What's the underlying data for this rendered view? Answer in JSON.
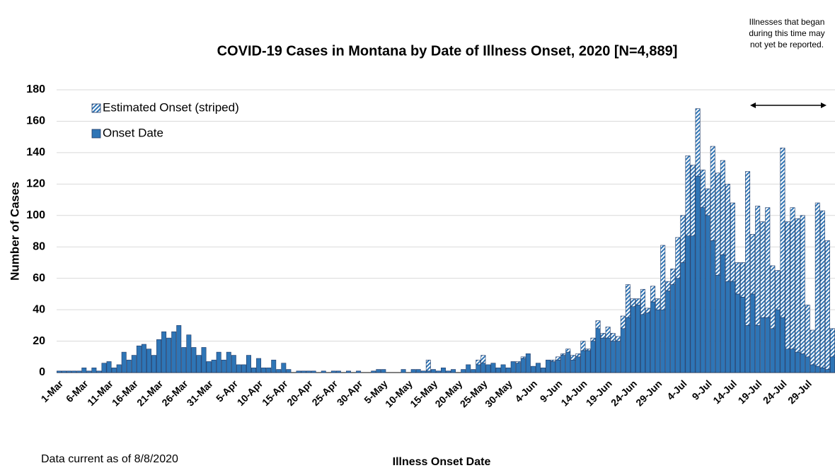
{
  "chart_data": {
    "type": "stacked_bar",
    "title": "COVID-19 Cases in Montana by Date of Illness Onset, 2020 [N=4,889]",
    "annotation": [
      "Illnesses that began",
      "during this time may",
      "not yet be reported."
    ],
    "footnote": "Data current as of 8/8/2020",
    "x_label": "Illness Onset Date",
    "y_label": "Number of Cases",
    "ylim": [
      0,
      180
    ],
    "yticks": [
      0,
      20,
      40,
      60,
      80,
      100,
      120,
      140,
      160,
      180
    ],
    "grid": true,
    "legend": "top-left",
    "categories": [
      "1-Mar",
      null,
      null,
      null,
      null,
      "6-Mar",
      null,
      null,
      null,
      null,
      "11-Mar",
      null,
      null,
      null,
      null,
      "16-Mar",
      null,
      null,
      null,
      null,
      "21-Mar",
      null,
      null,
      null,
      null,
      "26-Mar",
      null,
      null,
      null,
      null,
      "31-Mar",
      null,
      null,
      null,
      null,
      "5-Apr",
      null,
      null,
      null,
      null,
      "10-Apr",
      null,
      null,
      null,
      null,
      "15-Apr",
      null,
      null,
      null,
      null,
      "20-Apr",
      null,
      null,
      null,
      null,
      "25-Apr",
      null,
      null,
      null,
      null,
      "30-Apr",
      null,
      null,
      null,
      null,
      "5-May",
      null,
      null,
      null,
      null,
      "10-May",
      null,
      null,
      null,
      null,
      "15-May",
      null,
      null,
      null,
      null,
      "20-May",
      null,
      null,
      null,
      null,
      "25-May",
      null,
      null,
      null,
      null,
      "30-May",
      null,
      null,
      null,
      null,
      "4-Jun",
      null,
      null,
      null,
      null,
      "9-Jun",
      null,
      null,
      null,
      null,
      "14-Jun",
      null,
      null,
      null,
      null,
      "19-Jun",
      null,
      null,
      null,
      null,
      "24-Jun",
      null,
      null,
      null,
      null,
      "29-Jun",
      null,
      null,
      null,
      null,
      "4-Jul",
      null,
      null,
      null,
      null,
      "9-Jul",
      null,
      null,
      null,
      null,
      "14-Jul",
      null,
      null,
      null,
      null,
      "19-Jul",
      null,
      null,
      null,
      null,
      "24-Jul",
      null,
      null,
      null,
      null,
      "29-Jul",
      null,
      null,
      null,
      null,
      null
    ],
    "series": [
      {
        "name": "Onset Date",
        "color": "#2e75b6",
        "striped": false,
        "values": [
          1,
          1,
          1,
          1,
          1,
          3,
          1,
          3,
          1,
          6,
          7,
          3,
          5,
          13,
          8,
          11,
          17,
          18,
          15,
          11,
          21,
          26,
          22,
          26,
          30,
          16,
          24,
          16,
          11,
          16,
          7,
          8,
          13,
          8,
          13,
          11,
          5,
          5,
          11,
          3,
          9,
          3,
          3,
          8,
          2,
          6,
          2,
          0,
          1,
          1,
          1,
          1,
          0,
          1,
          0,
          1,
          1,
          0,
          1,
          0,
          1,
          0,
          0,
          1,
          2,
          2,
          0,
          0,
          0,
          2,
          0,
          2,
          2,
          1,
          1,
          2,
          1,
          3,
          1,
          2,
          0,
          2,
          5,
          2,
          5,
          6,
          5,
          6,
          3,
          5,
          3,
          7,
          6,
          9,
          12,
          4,
          6,
          3,
          8,
          7,
          8,
          11,
          13,
          8,
          10,
          14,
          14,
          20,
          28,
          22,
          22,
          20,
          20,
          28,
          35,
          42,
          43,
          37,
          38,
          45,
          40,
          40,
          52,
          56,
          60,
          70,
          87,
          87,
          125,
          105,
          100,
          84,
          62,
          75,
          58,
          58,
          50,
          48,
          30,
          50,
          30,
          35,
          35,
          28,
          40,
          35,
          15,
          15,
          13,
          12,
          10,
          5,
          4,
          3,
          2,
          10
        ]
      },
      {
        "name": "Estimated Onset (striped)",
        "color": "#2e75b6",
        "striped": true,
        "values": [
          0,
          0,
          0,
          0,
          0,
          0,
          0,
          0,
          0,
          0,
          0,
          0,
          0,
          0,
          0,
          0,
          0,
          0,
          0,
          0,
          0,
          0,
          0,
          0,
          0,
          0,
          0,
          0,
          0,
          0,
          0,
          0,
          0,
          0,
          0,
          0,
          0,
          0,
          0,
          0,
          0,
          0,
          0,
          0,
          0,
          0,
          0,
          0,
          0,
          0,
          0,
          0,
          0,
          0,
          0,
          0,
          0,
          0,
          0,
          0,
          0,
          0,
          0,
          0,
          0,
          0,
          0,
          0,
          0,
          0,
          0,
          0,
          0,
          0,
          7,
          0,
          0,
          0,
          0,
          0,
          0,
          0,
          0,
          0,
          3,
          5,
          0,
          0,
          0,
          0,
          0,
          0,
          1,
          1,
          0,
          0,
          0,
          0,
          0,
          1,
          2,
          1,
          2,
          3,
          2,
          6,
          1,
          2,
          5,
          3,
          7,
          5,
          3,
          8,
          21,
          5,
          4,
          16,
          3,
          10,
          7,
          41,
          6,
          10,
          26,
          30,
          51,
          45,
          43,
          24,
          17,
          60,
          65,
          60,
          62,
          50,
          20,
          22,
          98,
          38,
          76,
          61,
          70,
          40,
          25,
          108,
          81,
          90,
          85,
          88,
          33,
          22,
          104,
          100,
          82,
          18
        ]
      }
    ]
  }
}
